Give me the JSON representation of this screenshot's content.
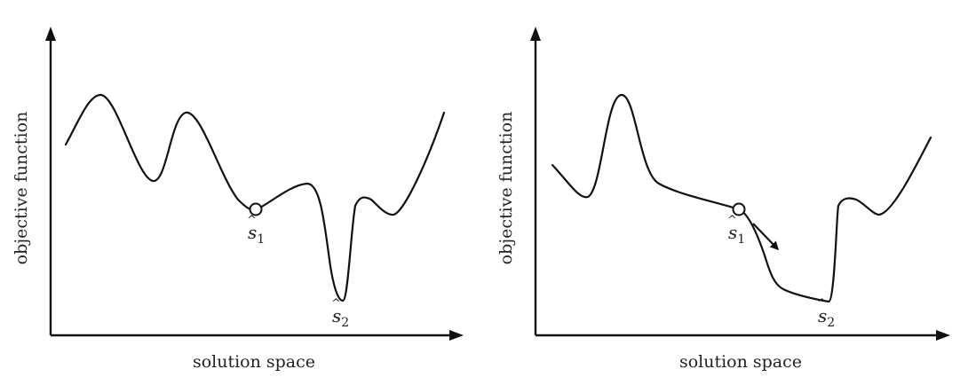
{
  "panels": [
    {
      "ylabel": "objective function",
      "xlabel": "solution space",
      "points": [
        {
          "base": "s",
          "sub": "1"
        },
        {
          "base": "s",
          "sub": "2"
        }
      ]
    },
    {
      "ylabel": "objective function",
      "xlabel": "solution space",
      "points": [
        {
          "base": "s",
          "sub": "1"
        },
        {
          "base": "s",
          "sub": "2"
        }
      ]
    }
  ]
}
